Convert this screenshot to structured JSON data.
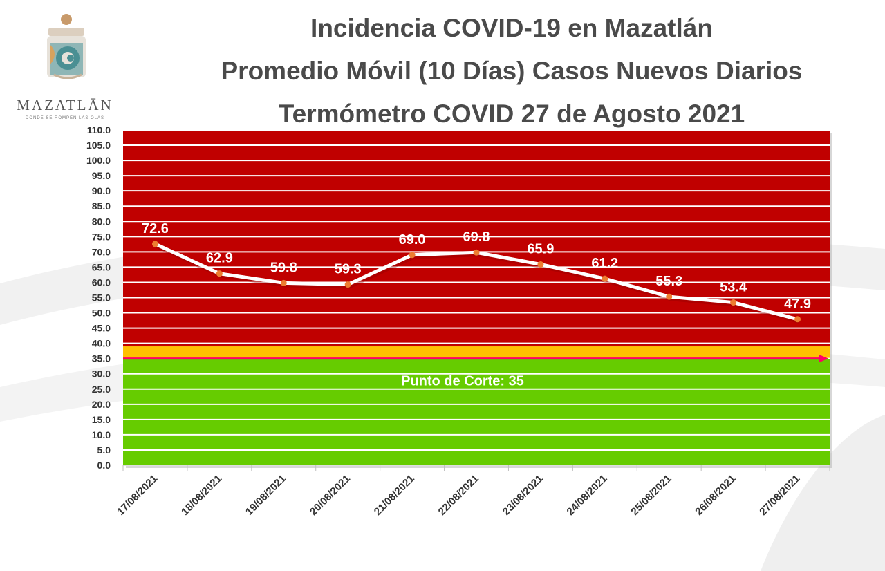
{
  "header": {
    "title_line1": "Incidencia COVID-19 en Mazatlán",
    "title_line2": "Promedio Móvil (10 Días) Casos Nuevos Diarios",
    "title_line3": "Termómetro COVID 27 de Agosto 2021"
  },
  "logo": {
    "name": "MAZATLĀN",
    "tagline": "DONDE SE ROMPEN LAS OLAS"
  },
  "chart_data": {
    "type": "line",
    "title": "",
    "xlabel": "",
    "ylabel": "",
    "categories": [
      "17/08/2021",
      "18/08/2021",
      "19/08/2021",
      "20/08/2021",
      "21/08/2021",
      "22/08/2021",
      "23/08/2021",
      "24/08/2021",
      "25/08/2021",
      "26/08/2021",
      "27/08/2021"
    ],
    "series": [
      {
        "values": [
          72.6,
          62.9,
          59.8,
          59.3,
          69.0,
          69.8,
          65.9,
          61.2,
          55.3,
          53.4,
          47.9
        ]
      }
    ],
    "data_labels": [
      "72.6",
      "62.9",
      "59.8",
      "59.3",
      "69.0",
      "69.8",
      "65.9",
      "61.2",
      "55.3",
      "53.4",
      "47.9"
    ],
    "ylim": [
      0,
      110
    ],
    "y_tick_step": 5,
    "y_tick_labels": [
      "0.0",
      "5.0",
      "10.0",
      "15.0",
      "20.0",
      "25.0",
      "30.0",
      "35.0",
      "40.0",
      "45.0",
      "50.0",
      "55.0",
      "60.0",
      "65.0",
      "70.0",
      "75.0",
      "80.0",
      "85.0",
      "90.0",
      "95.0",
      "100.0",
      "105.0",
      "110.0"
    ],
    "grid": true,
    "threshold": {
      "value": 35,
      "label": "Punto de Corte: 35"
    },
    "zones": [
      {
        "from": 0,
        "to": 35,
        "color": "#66cc00"
      },
      {
        "from": 35,
        "to": 39,
        "color": "#ffc000"
      },
      {
        "from": 39,
        "to": 110,
        "color": "#c00000"
      }
    ],
    "colors": {
      "line": "#ffffff",
      "marker": "#ed7d31",
      "threshold_arrow": "#ff0066",
      "axis_text": "#333333",
      "data_label": "#ffffff"
    }
  }
}
